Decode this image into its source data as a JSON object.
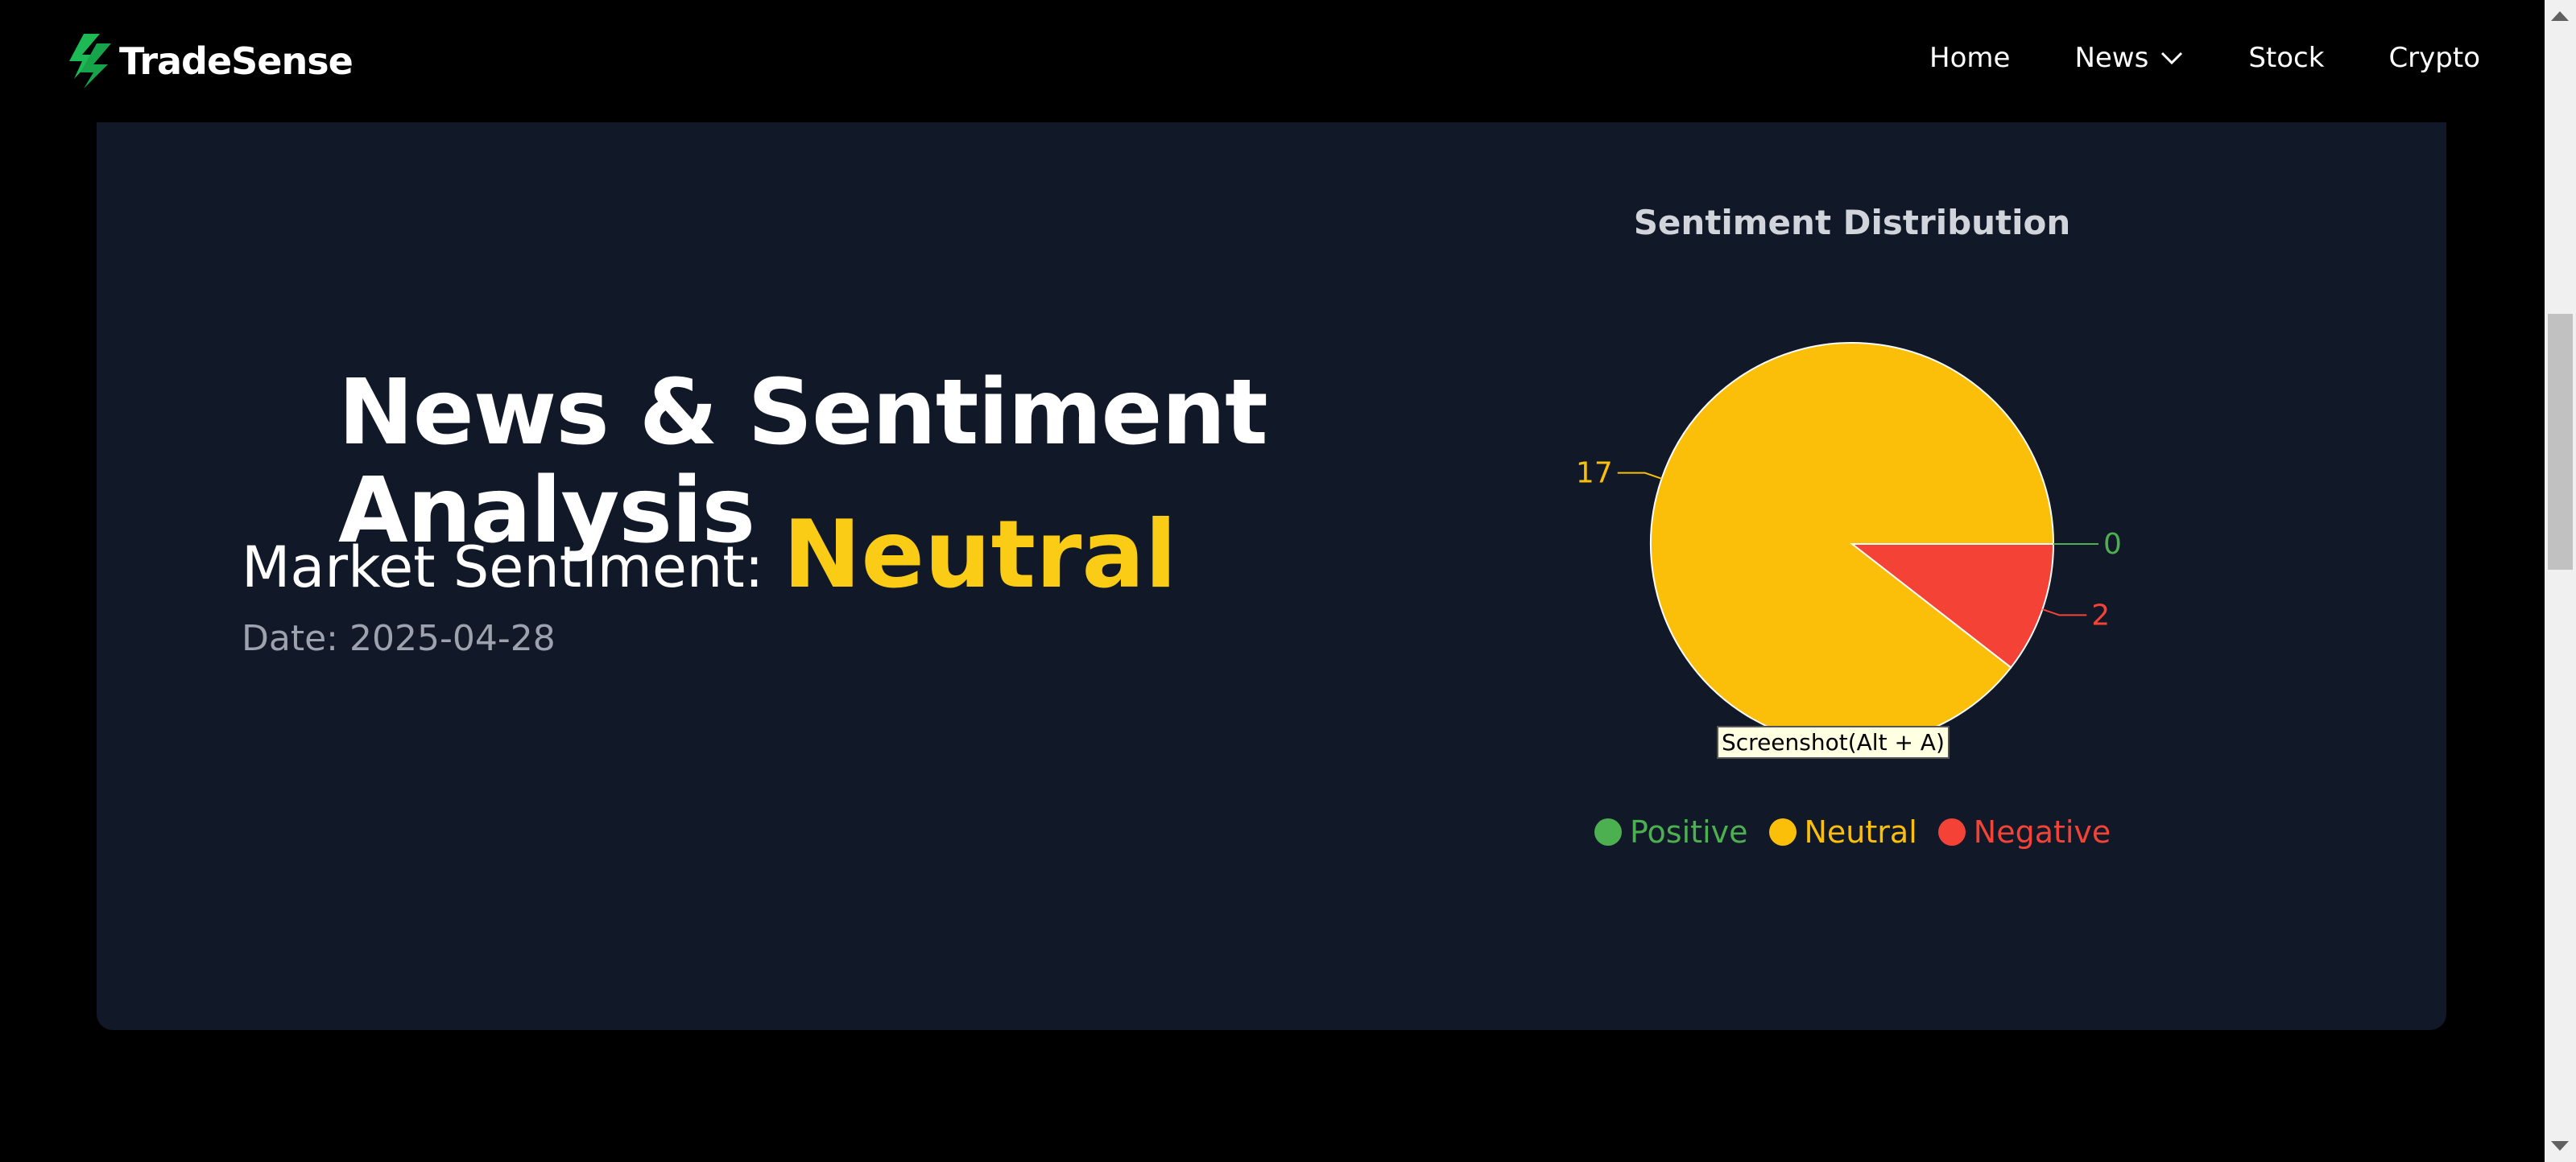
{
  "brand": {
    "name": "TradeSense"
  },
  "nav": {
    "items": [
      {
        "label": "Home"
      },
      {
        "label": "News",
        "has_dropdown": true
      },
      {
        "label": "Stock"
      },
      {
        "label": "Crypto"
      }
    ]
  },
  "hero": {
    "title_line1": "News & Sentiment",
    "title_line2": "Analysis",
    "sentiment_label": "Market Sentiment:",
    "sentiment_value": "Neutral",
    "date": "Date: 2025-04-28"
  },
  "tooltip": "Screenshot(Alt + A)",
  "colors": {
    "positive": "#4caf50",
    "neutral": "#fbbf0a",
    "negative": "#f44336",
    "accent": "#facc15",
    "card_bg": "#111827",
    "brand_green": "#1db954"
  },
  "chart_data": {
    "type": "pie",
    "title": "Sentiment Distribution",
    "categories": [
      "Positive",
      "Neutral",
      "Negative"
    ],
    "values": [
      0,
      17,
      2
    ],
    "colors": [
      "#4caf50",
      "#fbbf0a",
      "#f44336"
    ],
    "legend_position": "bottom"
  }
}
